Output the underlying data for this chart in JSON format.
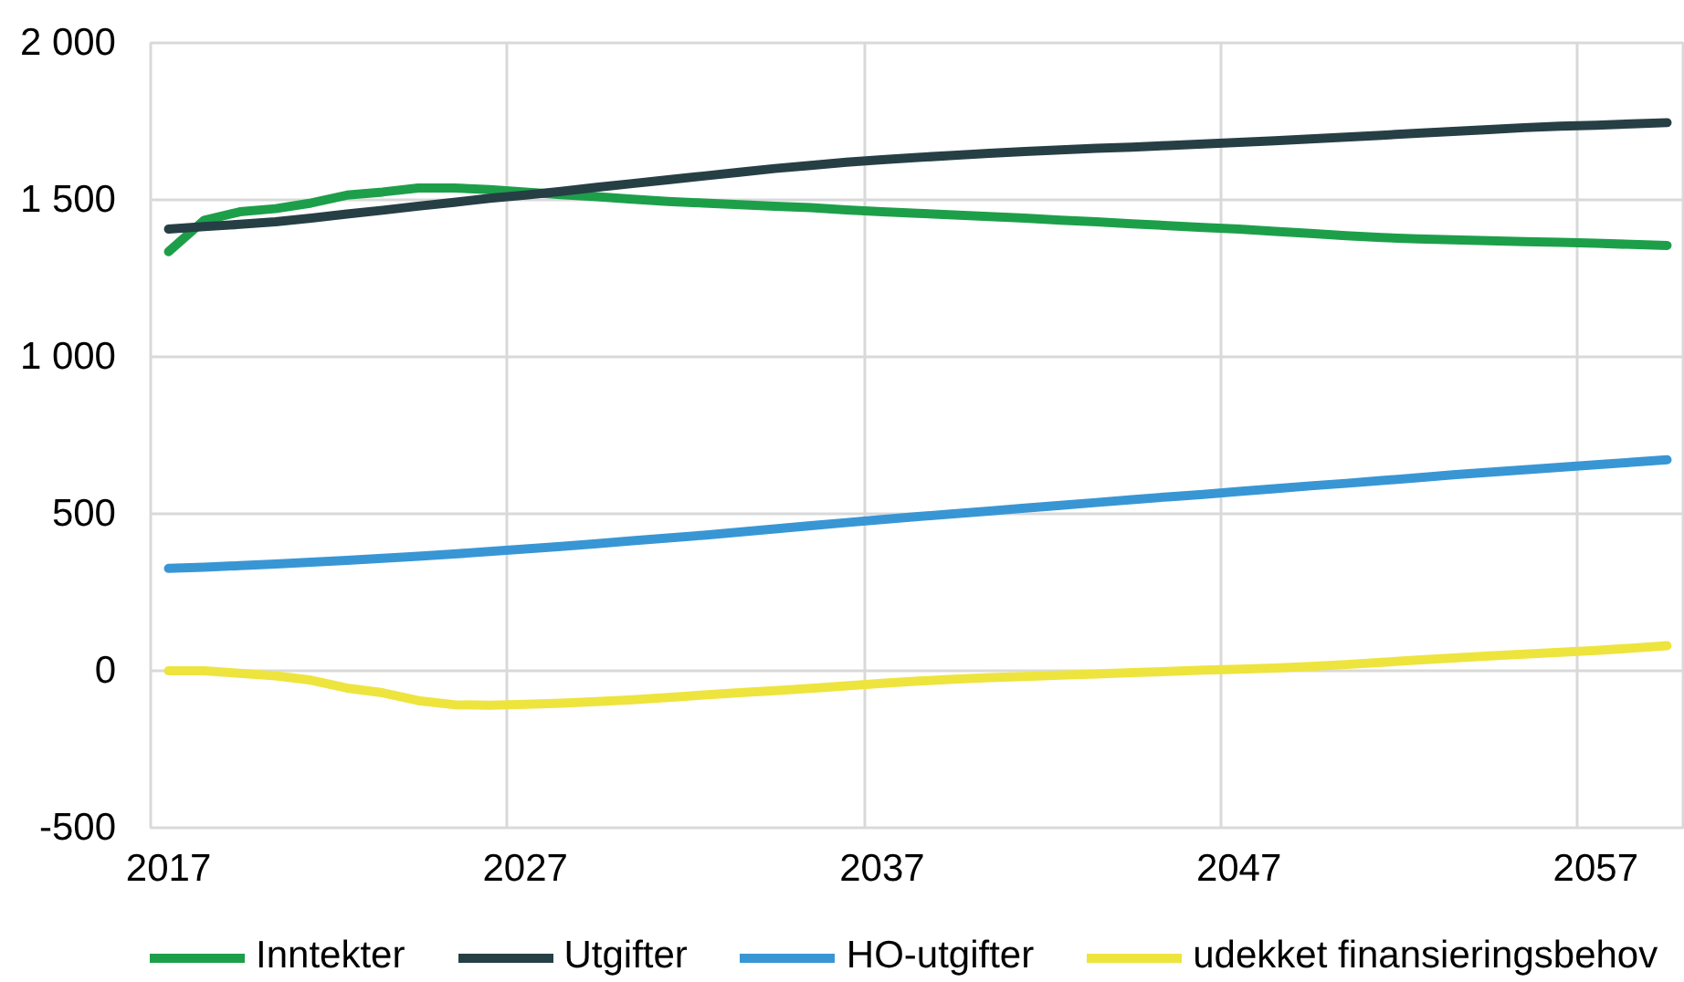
{
  "chart_data": {
    "type": "line",
    "categories": [
      "2017",
      null,
      null,
      null,
      null,
      null,
      null,
      null,
      null,
      null,
      "2027",
      null,
      null,
      null,
      null,
      null,
      null,
      null,
      null,
      null,
      "2037",
      null,
      null,
      null,
      null,
      null,
      null,
      null,
      null,
      null,
      "2047",
      null,
      null,
      null,
      null,
      null,
      null,
      null,
      null,
      null,
      "2057",
      null,
      null
    ],
    "ylim": [
      -500,
      2000
    ],
    "yticks": [
      -500,
      0,
      500,
      {
        "value": 1000,
        "label": "1 000"
      },
      {
        "value": 1500,
        "label": "1 500"
      },
      {
        "value": 2000,
        "label": "2 000"
      }
    ],
    "grid": true,
    "legend": "bottom",
    "line_style": "solid",
    "series": [
      {
        "name": "Inntekter",
        "color": "#1d9f4a",
        "values": [
          1335,
          1435,
          1462,
          1472,
          1490,
          1515,
          1525,
          1538,
          1538,
          1533,
          1525,
          1517,
          1510,
          1502,
          1495,
          1490,
          1485,
          1480,
          1475,
          1468,
          1462,
          1457,
          1452,
          1447,
          1442,
          1435,
          1430,
          1424,
          1418,
          1412,
          1407,
          1400,
          1393,
          1386,
          1380,
          1376,
          1373,
          1370,
          1367,
          1365,
          1362,
          1358,
          1355
        ]
      },
      {
        "name": "Utgifter",
        "color": "#263f45",
        "values": [
          1407,
          1415,
          1422,
          1430,
          1442,
          1455,
          1467,
          1480,
          1492,
          1505,
          1515,
          1527,
          1540,
          1552,
          1564,
          1576,
          1588,
          1600,
          1610,
          1620,
          1628,
          1635,
          1642,
          1648,
          1654,
          1659,
          1664,
          1668,
          1673,
          1678,
          1683,
          1688,
          1694,
          1700,
          1706,
          1712,
          1718,
          1724,
          1730,
          1735,
          1738,
          1742,
          1746
        ]
      },
      {
        "name": "HO-utgifter",
        "color": "#3996d4",
        "values": [
          326,
          330,
          335,
          340,
          346,
          352,
          358,
          365,
          372,
          380,
          388,
          396,
          405,
          414,
          423,
          432,
          442,
          452,
          462,
          472,
          482,
          491,
          500,
          509,
          518,
          527,
          536,
          545,
          554,
          562,
          571,
          580,
          589,
          597,
          606,
          615,
          624,
          632,
          640,
          648,
          656,
          664,
          672
        ]
      },
      {
        "name": "udekket finansieringsbehov",
        "color": "#eee43e",
        "values": [
          0,
          0,
          -8,
          -16,
          -30,
          -55,
          -70,
          -95,
          -108,
          -110,
          -107,
          -103,
          -98,
          -92,
          -85,
          -77,
          -70,
          -63,
          -56,
          -48,
          -40,
          -33,
          -27,
          -22,
          -18,
          -14,
          -10,
          -6,
          -2,
          2,
          5,
          9,
          14,
          20,
          27,
          34,
          41,
          47,
          53,
          59,
          65,
          72,
          80
        ]
      }
    ]
  }
}
